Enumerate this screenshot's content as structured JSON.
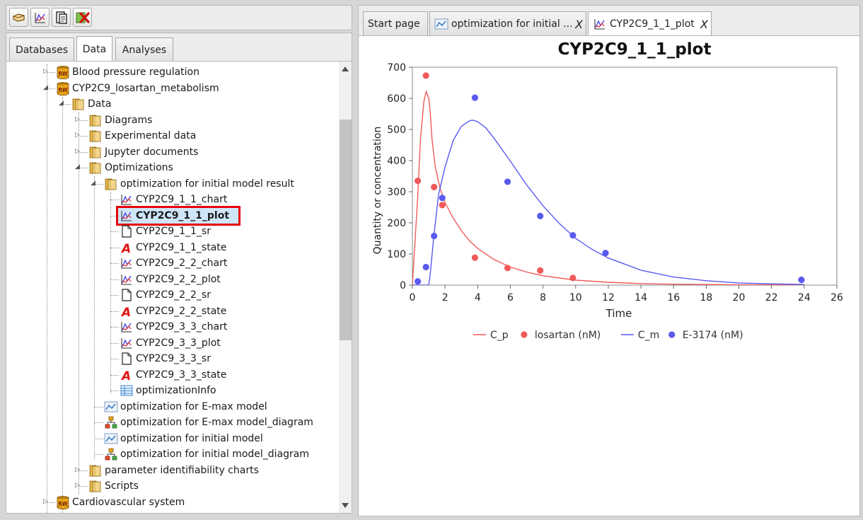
{
  "toolbar": {
    "buttons": [
      {
        "name": "open-icon"
      },
      {
        "name": "chart-icon"
      },
      {
        "name": "clipboard-icon"
      },
      {
        "name": "delete-icon"
      }
    ]
  },
  "left_tabs": [
    "Databases",
    "Data",
    "Analyses"
  ],
  "tree": [
    {
      "label": "Blood pressure regulation",
      "icon": "database-icon",
      "level": 0
    },
    {
      "label": "CYP2C9_losartan_metabolism",
      "icon": "database-icon",
      "level": 0
    },
    {
      "label": "Data",
      "icon": "folder-icon",
      "level": 1
    },
    {
      "label": "Diagrams",
      "icon": "folder-icon",
      "level": 2
    },
    {
      "label": "Experimental data",
      "icon": "folder-icon",
      "level": 2
    },
    {
      "label": "Jupyter documents",
      "icon": "folder-icon",
      "level": 2
    },
    {
      "label": "Optimizations",
      "icon": "folder-icon",
      "level": 2
    },
    {
      "label": "optimization for initial model result",
      "icon": "folder-icon",
      "level": 3
    },
    {
      "label": "CYP2C9_1_1_chart",
      "icon": "chart-icon",
      "level": 4
    },
    {
      "label": "CYP2C9_1_1_plot",
      "icon": "chart-icon",
      "level": 4,
      "selected": true
    },
    {
      "label": "CYP2C9_1_1_sr",
      "icon": "document-icon",
      "level": 4
    },
    {
      "label": "CYP2C9_1_1_state",
      "icon": "state-icon",
      "level": 4
    },
    {
      "label": "CYP2C9_2_2_chart",
      "icon": "chart-icon",
      "level": 4
    },
    {
      "label": "CYP2C9_2_2_plot",
      "icon": "chart-icon",
      "level": 4
    },
    {
      "label": "CYP2C9_2_2_sr",
      "icon": "document-icon",
      "level": 4
    },
    {
      "label": "CYP2C9_2_2_state",
      "icon": "state-icon",
      "level": 4
    },
    {
      "label": "CYP2C9_3_3_chart",
      "icon": "chart-icon",
      "level": 4
    },
    {
      "label": "CYP2C9_3_3_plot",
      "icon": "chart-icon",
      "level": 4
    },
    {
      "label": "CYP2C9_3_3_sr",
      "icon": "document-icon",
      "level": 4
    },
    {
      "label": "CYP2C9_3_3_state",
      "icon": "state-icon",
      "level": 4
    },
    {
      "label": "optimizationInfo",
      "icon": "table-icon",
      "level": 4
    },
    {
      "label": "optimization for E-max model",
      "icon": "optimization-icon",
      "level": 3
    },
    {
      "label": "optimization for E-max model_diagram",
      "icon": "diagram-icon",
      "level": 3
    },
    {
      "label": "optimization for initial model",
      "icon": "optimization-icon",
      "level": 3
    },
    {
      "label": "optimization for initial model_diagram",
      "icon": "diagram-icon",
      "level": 3
    },
    {
      "label": "parameter identifiability charts",
      "icon": "folder-icon",
      "level": 2
    },
    {
      "label": "Scripts",
      "icon": "folder-icon",
      "level": 2
    },
    {
      "label": "Cardiovascular system",
      "icon": "database-icon",
      "level": 0
    }
  ],
  "right_tabs": [
    {
      "label": "Start page",
      "closable": false
    },
    {
      "label": "optimization for initial ...",
      "closable": true,
      "close": "X"
    },
    {
      "label": "CYP2C9_1_1_plot",
      "closable": true,
      "close": "X"
    }
  ],
  "chart_data": {
    "type": "line",
    "title": "CYP2C9_1_1_plot",
    "xlabel": "Time",
    "ylabel": "Quantity or concentration",
    "xlim": [
      0,
      26
    ],
    "ylim": [
      0,
      700
    ],
    "xticks": [
      0,
      2,
      4,
      6,
      8,
      10,
      12,
      14,
      16,
      18,
      20,
      22,
      24,
      26
    ],
    "yticks": [
      0,
      100,
      200,
      300,
      400,
      500,
      600,
      700
    ],
    "grid": false,
    "legend_position": "bottom",
    "series": [
      {
        "name": "C_p",
        "kind": "line",
        "color": "#f05a5a",
        "x": [
          0,
          0.3,
          0.5,
          0.7,
          0.85,
          1.0,
          1.1,
          1.2,
          1.4,
          1.7,
          2,
          2.5,
          3,
          3.5,
          4,
          5,
          6,
          7,
          8,
          10,
          12,
          14,
          16,
          18,
          20,
          22,
          24
        ],
        "y": [
          0,
          260,
          470,
          590,
          622,
          600,
          550,
          470,
          380,
          310,
          265,
          215,
          175,
          142,
          118,
          82,
          58,
          42,
          30,
          16,
          9,
          5,
          3,
          2,
          1,
          1,
          0
        ]
      },
      {
        "name": "losartan (nM)",
        "kind": "scatter",
        "color": "#f05a5a",
        "x": [
          0.33,
          0.83,
          1.33,
          1.83,
          3.83,
          5.83,
          7.83,
          9.83
        ],
        "y": [
          335,
          673,
          315,
          257,
          88,
          55,
          47,
          23
        ]
      },
      {
        "name": "C_m",
        "kind": "line",
        "color": "#5a5af0",
        "x": [
          0,
          1.0,
          1.1,
          1.3,
          1.6,
          2,
          2.5,
          3,
          3.5,
          3.7,
          4,
          4.5,
          5,
          6,
          7,
          8,
          9,
          10,
          11,
          12,
          14,
          16,
          18,
          20,
          22,
          24
        ],
        "y": [
          0,
          0,
          40,
          150,
          290,
          380,
          465,
          510,
          528,
          530,
          525,
          505,
          472,
          398,
          322,
          255,
          198,
          150,
          115,
          87,
          48,
          26,
          14,
          7,
          4,
          2
        ]
      },
      {
        "name": "E-3174 (nM)",
        "kind": "scatter",
        "color": "#5a5af0",
        "x": [
          0.33,
          0.83,
          1.33,
          1.83,
          3.83,
          5.83,
          7.83,
          9.83,
          11.83,
          23.83
        ],
        "y": [
          12,
          58,
          158,
          280,
          602,
          332,
          222,
          160,
          103,
          17
        ]
      }
    ]
  }
}
